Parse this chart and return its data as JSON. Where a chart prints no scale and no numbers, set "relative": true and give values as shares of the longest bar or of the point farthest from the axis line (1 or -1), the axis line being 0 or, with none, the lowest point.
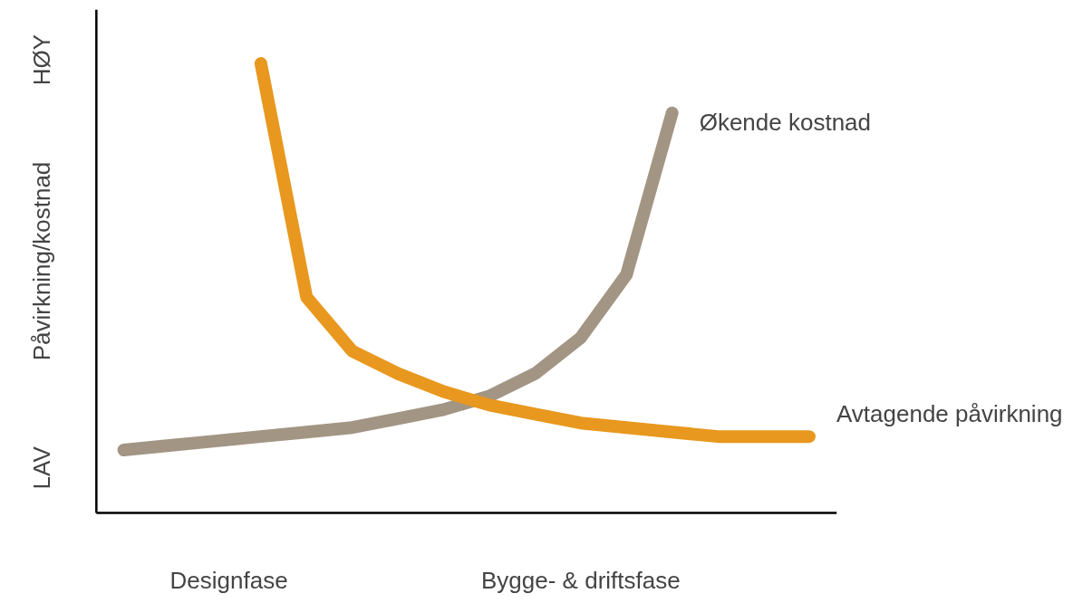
{
  "chart_data": {
    "type": "line",
    "relative": true,
    "ylabel": "Påvirkning/kostnad",
    "categories": [
      null,
      null,
      null,
      null,
      null,
      null,
      null,
      null,
      null,
      null,
      null,
      null,
      null,
      null,
      null,
      null
    ],
    "series": [
      {
        "name": "Økende kostnad",
        "color": "#a39584",
        "values": [
          0.14,
          0.15,
          0.16,
          0.17,
          0.18,
          0.19,
          0.21,
          0.23,
          0.26,
          0.31,
          0.39,
          0.53,
          0.89,
          null,
          null,
          null
        ]
      },
      {
        "name": "Avtagende påvirkning",
        "color": "#e8981e",
        "values": [
          null,
          null,
          null,
          1.0,
          0.48,
          0.36,
          0.31,
          0.27,
          0.24,
          0.22,
          0.2,
          0.19,
          0.18,
          0.17,
          0.17,
          0.17
        ]
      }
    ],
    "annotations": [
      "LAV",
      "HØY",
      "Designfase",
      "Bygge- & driftsfase"
    ],
    "grid": false,
    "line_style": "solid"
  }
}
